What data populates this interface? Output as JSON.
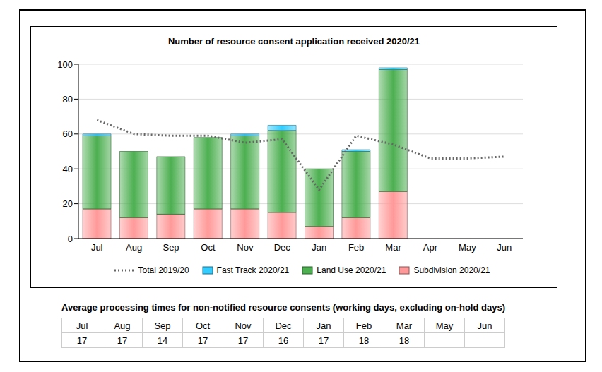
{
  "chart_data": {
    "type": "bar",
    "title": "Number of resource consent application received 2020/21",
    "categories": [
      "Jul",
      "Aug",
      "Sep",
      "Oct",
      "Nov",
      "Dec",
      "Jan",
      "Feb",
      "Mar",
      "Apr",
      "May",
      "Jun"
    ],
    "series": [
      {
        "name": "Total 2019/20",
        "type": "line",
        "line_style": "dotted",
        "color": "#666666",
        "values": [
          68,
          60,
          59,
          59,
          55,
          57,
          28,
          59,
          54,
          46,
          46,
          47
        ]
      },
      {
        "name": "Fast Track 2020/21",
        "type": "bar",
        "color": "#33ccff",
        "values": [
          1,
          0,
          0,
          0,
          1,
          3,
          0,
          1,
          1,
          null,
          null,
          null
        ]
      },
      {
        "name": "Land Use 2020/21",
        "type": "bar",
        "color": "#4caf50",
        "values": [
          42,
          38,
          33,
          41,
          42,
          47,
          33,
          38,
          70,
          null,
          null,
          null
        ]
      },
      {
        "name": "Subdivision 2020/21",
        "type": "bar",
        "color": "#ff9999",
        "values": [
          17,
          12,
          14,
          17,
          17,
          15,
          7,
          12,
          27,
          null,
          null,
          null
        ]
      }
    ],
    "stacked": true,
    "ylim": [
      0,
      100
    ],
    "yticks": [
      0,
      20,
      40,
      60,
      80,
      100
    ],
    "grid": true,
    "legend": "bottom"
  },
  "table": {
    "title": "Average processing times for non-notified resource consents (working days, excluding on-hold days)",
    "columns": [
      "Jul",
      "Aug",
      "Sep",
      "Oct",
      "Nov",
      "Dec",
      "Jan",
      "Feb",
      "Mar",
      "May",
      "Jun"
    ],
    "rows": [
      [
        17,
        17,
        14,
        17,
        17,
        16,
        17,
        18,
        18,
        null,
        null
      ]
    ]
  }
}
